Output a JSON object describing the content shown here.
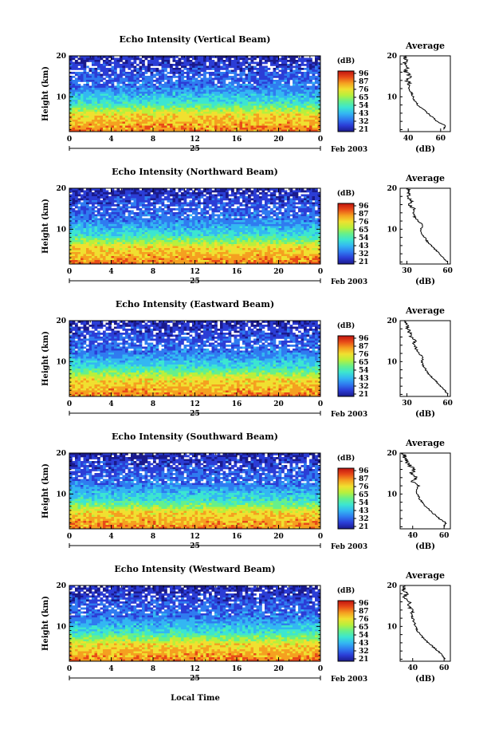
{
  "figure": {
    "xlabel": "Local Time",
    "date_label": "Feb 2003",
    "day_label": "25",
    "colorbar_unit": "(dB)",
    "colorbar_ticks": [
      "96",
      "87",
      "76",
      "65",
      "54",
      "43",
      "32",
      "21"
    ],
    "profile_title": "Average",
    "profile_xlabel": "(dB)",
    "height_label": "Height (km)",
    "height_ticks": [
      "20",
      "10"
    ],
    "time_ticks": [
      "0",
      "4",
      "8",
      "12",
      "16",
      "20",
      "0"
    ],
    "colormap": [
      "#1a1a8c",
      "#2b3dd6",
      "#2f7bf0",
      "#33b7f2",
      "#3ce6d0",
      "#66f08a",
      "#b8f03c",
      "#f0e030",
      "#f5a020",
      "#e84a18",
      "#c0140f"
    ]
  },
  "chart_data": [
    {
      "type": "heatmap",
      "title": "Echo Intensity (Vertical Beam)",
      "x_range_hours": [
        0,
        24
      ],
      "y_range_km": [
        1.5,
        20
      ],
      "color_range_db": [
        21,
        96
      ],
      "profile": {
        "title": "Average",
        "xticks": [
          "40",
          "60"
        ],
        "xlim": [
          35,
          66
        ],
        "points": [
          [
            62,
            2
          ],
          [
            63,
            3
          ],
          [
            58,
            4
          ],
          [
            55,
            5
          ],
          [
            52,
            6
          ],
          [
            49,
            7
          ],
          [
            46,
            8
          ],
          [
            44,
            9
          ],
          [
            43,
            10
          ],
          [
            42,
            11
          ],
          [
            40,
            12
          ],
          [
            41,
            13
          ],
          [
            39,
            14
          ],
          [
            42,
            15
          ],
          [
            38,
            16
          ],
          [
            40,
            17
          ],
          [
            37,
            18
          ],
          [
            39,
            19
          ],
          [
            38,
            20
          ]
        ]
      }
    },
    {
      "type": "heatmap",
      "title": "Echo Intensity (Northward Beam)",
      "x_range_hours": [
        0,
        24
      ],
      "y_range_km": [
        1.5,
        20
      ],
      "color_range_db": [
        21,
        96
      ],
      "profile": {
        "title": "Average",
        "xticks": [
          "30",
          "60"
        ],
        "xlim": [
          25,
          62
        ],
        "points": [
          [
            60,
            2
          ],
          [
            57,
            3
          ],
          [
            54,
            4
          ],
          [
            51,
            5
          ],
          [
            48,
            6
          ],
          [
            45,
            7
          ],
          [
            43,
            8
          ],
          [
            41,
            9
          ],
          [
            40,
            10
          ],
          [
            42,
            11
          ],
          [
            38,
            12
          ],
          [
            36,
            13
          ],
          [
            34,
            14
          ],
          [
            35,
            15
          ],
          [
            32,
            16
          ],
          [
            33,
            17
          ],
          [
            31,
            18
          ],
          [
            32,
            19
          ],
          [
            30,
            20
          ]
        ]
      }
    },
    {
      "type": "heatmap",
      "title": "Echo Intensity (Eastward Beam)",
      "x_range_hours": [
        0,
        24
      ],
      "y_range_km": [
        1.5,
        20
      ],
      "color_range_db": [
        21,
        96
      ],
      "profile": {
        "title": "Average",
        "xticks": [
          "30",
          "60"
        ],
        "xlim": [
          25,
          62
        ],
        "points": [
          [
            60,
            2
          ],
          [
            58,
            3
          ],
          [
            55,
            4
          ],
          [
            52,
            5
          ],
          [
            49,
            6
          ],
          [
            46,
            7
          ],
          [
            44,
            8
          ],
          [
            42,
            9
          ],
          [
            41,
            10
          ],
          [
            42,
            11
          ],
          [
            39,
            12
          ],
          [
            37,
            13
          ],
          [
            35,
            14
          ],
          [
            36,
            15
          ],
          [
            33,
            16
          ],
          [
            32,
            17
          ],
          [
            31,
            18
          ],
          [
            30,
            19
          ],
          [
            29,
            20
          ]
        ]
      }
    },
    {
      "type": "heatmap",
      "title": "Echo Intensity (Southward Beam)",
      "x_range_hours": [
        0,
        24
      ],
      "y_range_km": [
        1.5,
        20
      ],
      "color_range_db": [
        21,
        96
      ],
      "profile": {
        "title": "Average",
        "xticks": [
          "40",
          "60"
        ],
        "xlim": [
          32,
          64
        ],
        "points": [
          [
            60,
            2
          ],
          [
            61,
            3
          ],
          [
            57,
            4
          ],
          [
            54,
            5
          ],
          [
            51,
            6
          ],
          [
            48,
            7
          ],
          [
            46,
            8
          ],
          [
            44,
            9
          ],
          [
            43,
            10
          ],
          [
            42,
            11
          ],
          [
            44,
            12
          ],
          [
            40,
            13
          ],
          [
            43,
            14
          ],
          [
            39,
            15
          ],
          [
            41,
            16
          ],
          [
            38,
            17
          ],
          [
            36,
            18
          ],
          [
            35,
            19
          ],
          [
            34,
            20
          ]
        ]
      }
    },
    {
      "type": "heatmap",
      "title": "Echo Intensity (Westward Beam)",
      "x_range_hours": [
        0,
        24
      ],
      "y_range_km": [
        1.5,
        20
      ],
      "color_range_db": [
        21,
        96
      ],
      "profile": {
        "title": "Average",
        "xticks": [
          "40",
          "60"
        ],
        "xlim": [
          32,
          64
        ],
        "points": [
          [
            61,
            2
          ],
          [
            59,
            3
          ],
          [
            56,
            4
          ],
          [
            53,
            5
          ],
          [
            50,
            6
          ],
          [
            47,
            7
          ],
          [
            45,
            8
          ],
          [
            43,
            9
          ],
          [
            42,
            10
          ],
          [
            41,
            11
          ],
          [
            40,
            12
          ],
          [
            39,
            13
          ],
          [
            40,
            14
          ],
          [
            37,
            15
          ],
          [
            38,
            16
          ],
          [
            35,
            17
          ],
          [
            36,
            18
          ],
          [
            34,
            19
          ],
          [
            35,
            20
          ]
        ]
      }
    }
  ]
}
